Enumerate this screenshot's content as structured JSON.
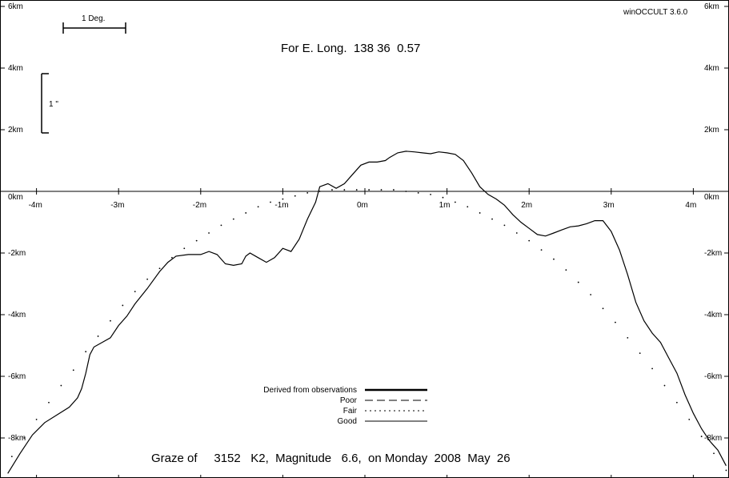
{
  "chart_data": {
    "type": "line",
    "title": "For E. Long.  138 36  0.57",
    "subtitle": "Graze of     3152   K2,  Magnitude   6.6,  on Monday  2008  May  26",
    "software_label": "winOCCULT 3.6.0",
    "scale_bar_label": "1 Deg.",
    "arcsec_scale_label": "1 \"",
    "xlim": [
      -4.4,
      4.4
    ],
    "ylim": [
      -9.2,
      6.4
    ],
    "x_ticks": [
      {
        "value": -4,
        "label": "-4m"
      },
      {
        "value": -3,
        "label": "-3m"
      },
      {
        "value": -2,
        "label": "-2m"
      },
      {
        "value": -1,
        "label": "-1m"
      },
      {
        "value": 0,
        "label": "0m"
      },
      {
        "value": 1,
        "label": "1m"
      },
      {
        "value": 2,
        "label": "2m"
      },
      {
        "value": 3,
        "label": "3m"
      },
      {
        "value": 4,
        "label": "4m"
      }
    ],
    "y_ticks": [
      {
        "value": 6,
        "label": "6km"
      },
      {
        "value": 4,
        "label": "4km"
      },
      {
        "value": 2,
        "label": "2km"
      },
      {
        "value": 0,
        "label": "0km"
      },
      {
        "value": -2,
        "label": "-2km"
      },
      {
        "value": -4,
        "label": "-4km"
      },
      {
        "value": -6,
        "label": "-6km"
      },
      {
        "value": -8,
        "label": "-8km"
      }
    ],
    "legend": {
      "placement": "bottom-center",
      "entries": [
        {
          "label": "Derived from observations",
          "style": "thick"
        },
        {
          "label": "Poor",
          "style": "dashed"
        },
        {
          "label": "Fair",
          "style": "dotted"
        },
        {
          "label": "Good",
          "style": "solid"
        }
      ]
    },
    "series": [
      {
        "name": "Good",
        "style": "solid",
        "points": [
          [
            -4.35,
            -9.15
          ],
          [
            -4.2,
            -8.5
          ],
          [
            -4.05,
            -7.9
          ],
          [
            -3.9,
            -7.5
          ],
          [
            -3.75,
            -7.25
          ],
          [
            -3.6,
            -7.0
          ],
          [
            -3.5,
            -6.7
          ],
          [
            -3.45,
            -6.4
          ],
          [
            -3.4,
            -5.9
          ],
          [
            -3.35,
            -5.3
          ],
          [
            -3.3,
            -5.05
          ],
          [
            -3.2,
            -4.9
          ],
          [
            -3.1,
            -4.75
          ],
          [
            -3.0,
            -4.35
          ],
          [
            -2.9,
            -4.05
          ],
          [
            -2.8,
            -3.65
          ],
          [
            -2.65,
            -3.15
          ],
          [
            -2.5,
            -2.6
          ],
          [
            -2.4,
            -2.3
          ],
          [
            -2.3,
            -2.1
          ],
          [
            -2.15,
            -2.05
          ],
          [
            -2.0,
            -2.05
          ],
          [
            -1.9,
            -1.95
          ],
          [
            -1.8,
            -2.05
          ],
          [
            -1.7,
            -2.35
          ],
          [
            -1.6,
            -2.4
          ],
          [
            -1.5,
            -2.35
          ],
          [
            -1.45,
            -2.1
          ],
          [
            -1.4,
            -2.0
          ],
          [
            -1.3,
            -2.15
          ],
          [
            -1.2,
            -2.3
          ],
          [
            -1.1,
            -2.15
          ],
          [
            -1.0,
            -1.85
          ],
          [
            -0.9,
            -1.95
          ],
          [
            -0.8,
            -1.55
          ],
          [
            -0.7,
            -0.9
          ],
          [
            -0.6,
            -0.35
          ],
          [
            -0.55,
            0.15
          ],
          [
            -0.45,
            0.25
          ],
          [
            -0.35,
            0.1
          ],
          [
            -0.25,
            0.25
          ],
          [
            -0.15,
            0.55
          ],
          [
            -0.05,
            0.85
          ],
          [
            0.05,
            0.95
          ],
          [
            0.15,
            0.95
          ],
          [
            0.25,
            1.0
          ],
          [
            0.3,
            1.1
          ],
          [
            0.4,
            1.25
          ],
          [
            0.5,
            1.3
          ],
          [
            0.6,
            1.28
          ],
          [
            0.7,
            1.25
          ],
          [
            0.8,
            1.22
          ],
          [
            0.9,
            1.28
          ],
          [
            1.0,
            1.25
          ],
          [
            1.1,
            1.2
          ],
          [
            1.2,
            1.0
          ],
          [
            1.3,
            0.6
          ],
          [
            1.4,
            0.15
          ],
          [
            1.5,
            -0.1
          ],
          [
            1.6,
            -0.25
          ],
          [
            1.7,
            -0.45
          ],
          [
            1.8,
            -0.75
          ],
          [
            1.9,
            -1.0
          ],
          [
            2.0,
            -1.2
          ],
          [
            2.1,
            -1.4
          ],
          [
            2.2,
            -1.45
          ],
          [
            2.3,
            -1.35
          ],
          [
            2.4,
            -1.25
          ],
          [
            2.5,
            -1.15
          ],
          [
            2.6,
            -1.12
          ],
          [
            2.7,
            -1.05
          ],
          [
            2.8,
            -0.95
          ],
          [
            2.9,
            -0.95
          ],
          [
            3.0,
            -1.3
          ],
          [
            3.1,
            -1.9
          ],
          [
            3.2,
            -2.7
          ],
          [
            3.3,
            -3.6
          ],
          [
            3.4,
            -4.2
          ],
          [
            3.5,
            -4.6
          ],
          [
            3.6,
            -4.9
          ],
          [
            3.7,
            -5.4
          ],
          [
            3.8,
            -5.9
          ],
          [
            3.9,
            -6.6
          ],
          [
            4.0,
            -7.2
          ],
          [
            4.1,
            -7.7
          ],
          [
            4.2,
            -8.1
          ],
          [
            4.3,
            -8.4
          ],
          [
            4.4,
            -8.9
          ]
        ]
      },
      {
        "name": "Fair",
        "style": "dotted",
        "points": [
          [
            -4.3,
            -8.6
          ],
          [
            -4.15,
            -8.0
          ],
          [
            -4.0,
            -7.4
          ],
          [
            -3.85,
            -6.85
          ],
          [
            -3.7,
            -6.3
          ],
          [
            -3.55,
            -5.8
          ],
          [
            -3.4,
            -5.2
          ],
          [
            -3.25,
            -4.7
          ],
          [
            -3.1,
            -4.2
          ],
          [
            -2.95,
            -3.7
          ],
          [
            -2.8,
            -3.25
          ],
          [
            -2.65,
            -2.85
          ],
          [
            -2.5,
            -2.5
          ],
          [
            -2.35,
            -2.15
          ],
          [
            -2.2,
            -1.85
          ],
          [
            -2.05,
            -1.6
          ],
          [
            -1.9,
            -1.35
          ],
          [
            -1.75,
            -1.1
          ],
          [
            -1.6,
            -0.9
          ],
          [
            -1.45,
            -0.7
          ],
          [
            -1.3,
            -0.5
          ],
          [
            -1.15,
            -0.35
          ],
          [
            -1.0,
            -0.25
          ],
          [
            -0.85,
            -0.15
          ],
          [
            -0.7,
            -0.05
          ],
          [
            -0.55,
            0.0
          ],
          [
            -0.4,
            0.05
          ],
          [
            -0.25,
            0.05
          ],
          [
            -0.1,
            0.05
          ],
          [
            0.05,
            0.05
          ],
          [
            0.2,
            0.05
          ],
          [
            0.35,
            0.05
          ],
          [
            0.5,
            0.0
          ],
          [
            0.65,
            -0.05
          ],
          [
            0.8,
            -0.1
          ],
          [
            0.95,
            -0.2
          ],
          [
            1.1,
            -0.35
          ],
          [
            1.25,
            -0.5
          ],
          [
            1.4,
            -0.7
          ],
          [
            1.55,
            -0.9
          ],
          [
            1.7,
            -1.1
          ],
          [
            1.85,
            -1.35
          ],
          [
            2.0,
            -1.6
          ],
          [
            2.15,
            -1.9
          ],
          [
            2.3,
            -2.2
          ],
          [
            2.45,
            -2.55
          ],
          [
            2.6,
            -2.95
          ],
          [
            2.75,
            -3.35
          ],
          [
            2.9,
            -3.8
          ],
          [
            3.05,
            -4.25
          ],
          [
            3.2,
            -4.75
          ],
          [
            3.35,
            -5.25
          ],
          [
            3.5,
            -5.75
          ],
          [
            3.65,
            -6.3
          ],
          [
            3.8,
            -6.85
          ],
          [
            3.95,
            -7.4
          ],
          [
            4.1,
            -7.95
          ],
          [
            4.25,
            -8.5
          ],
          [
            4.4,
            -9.05
          ]
        ]
      }
    ]
  }
}
